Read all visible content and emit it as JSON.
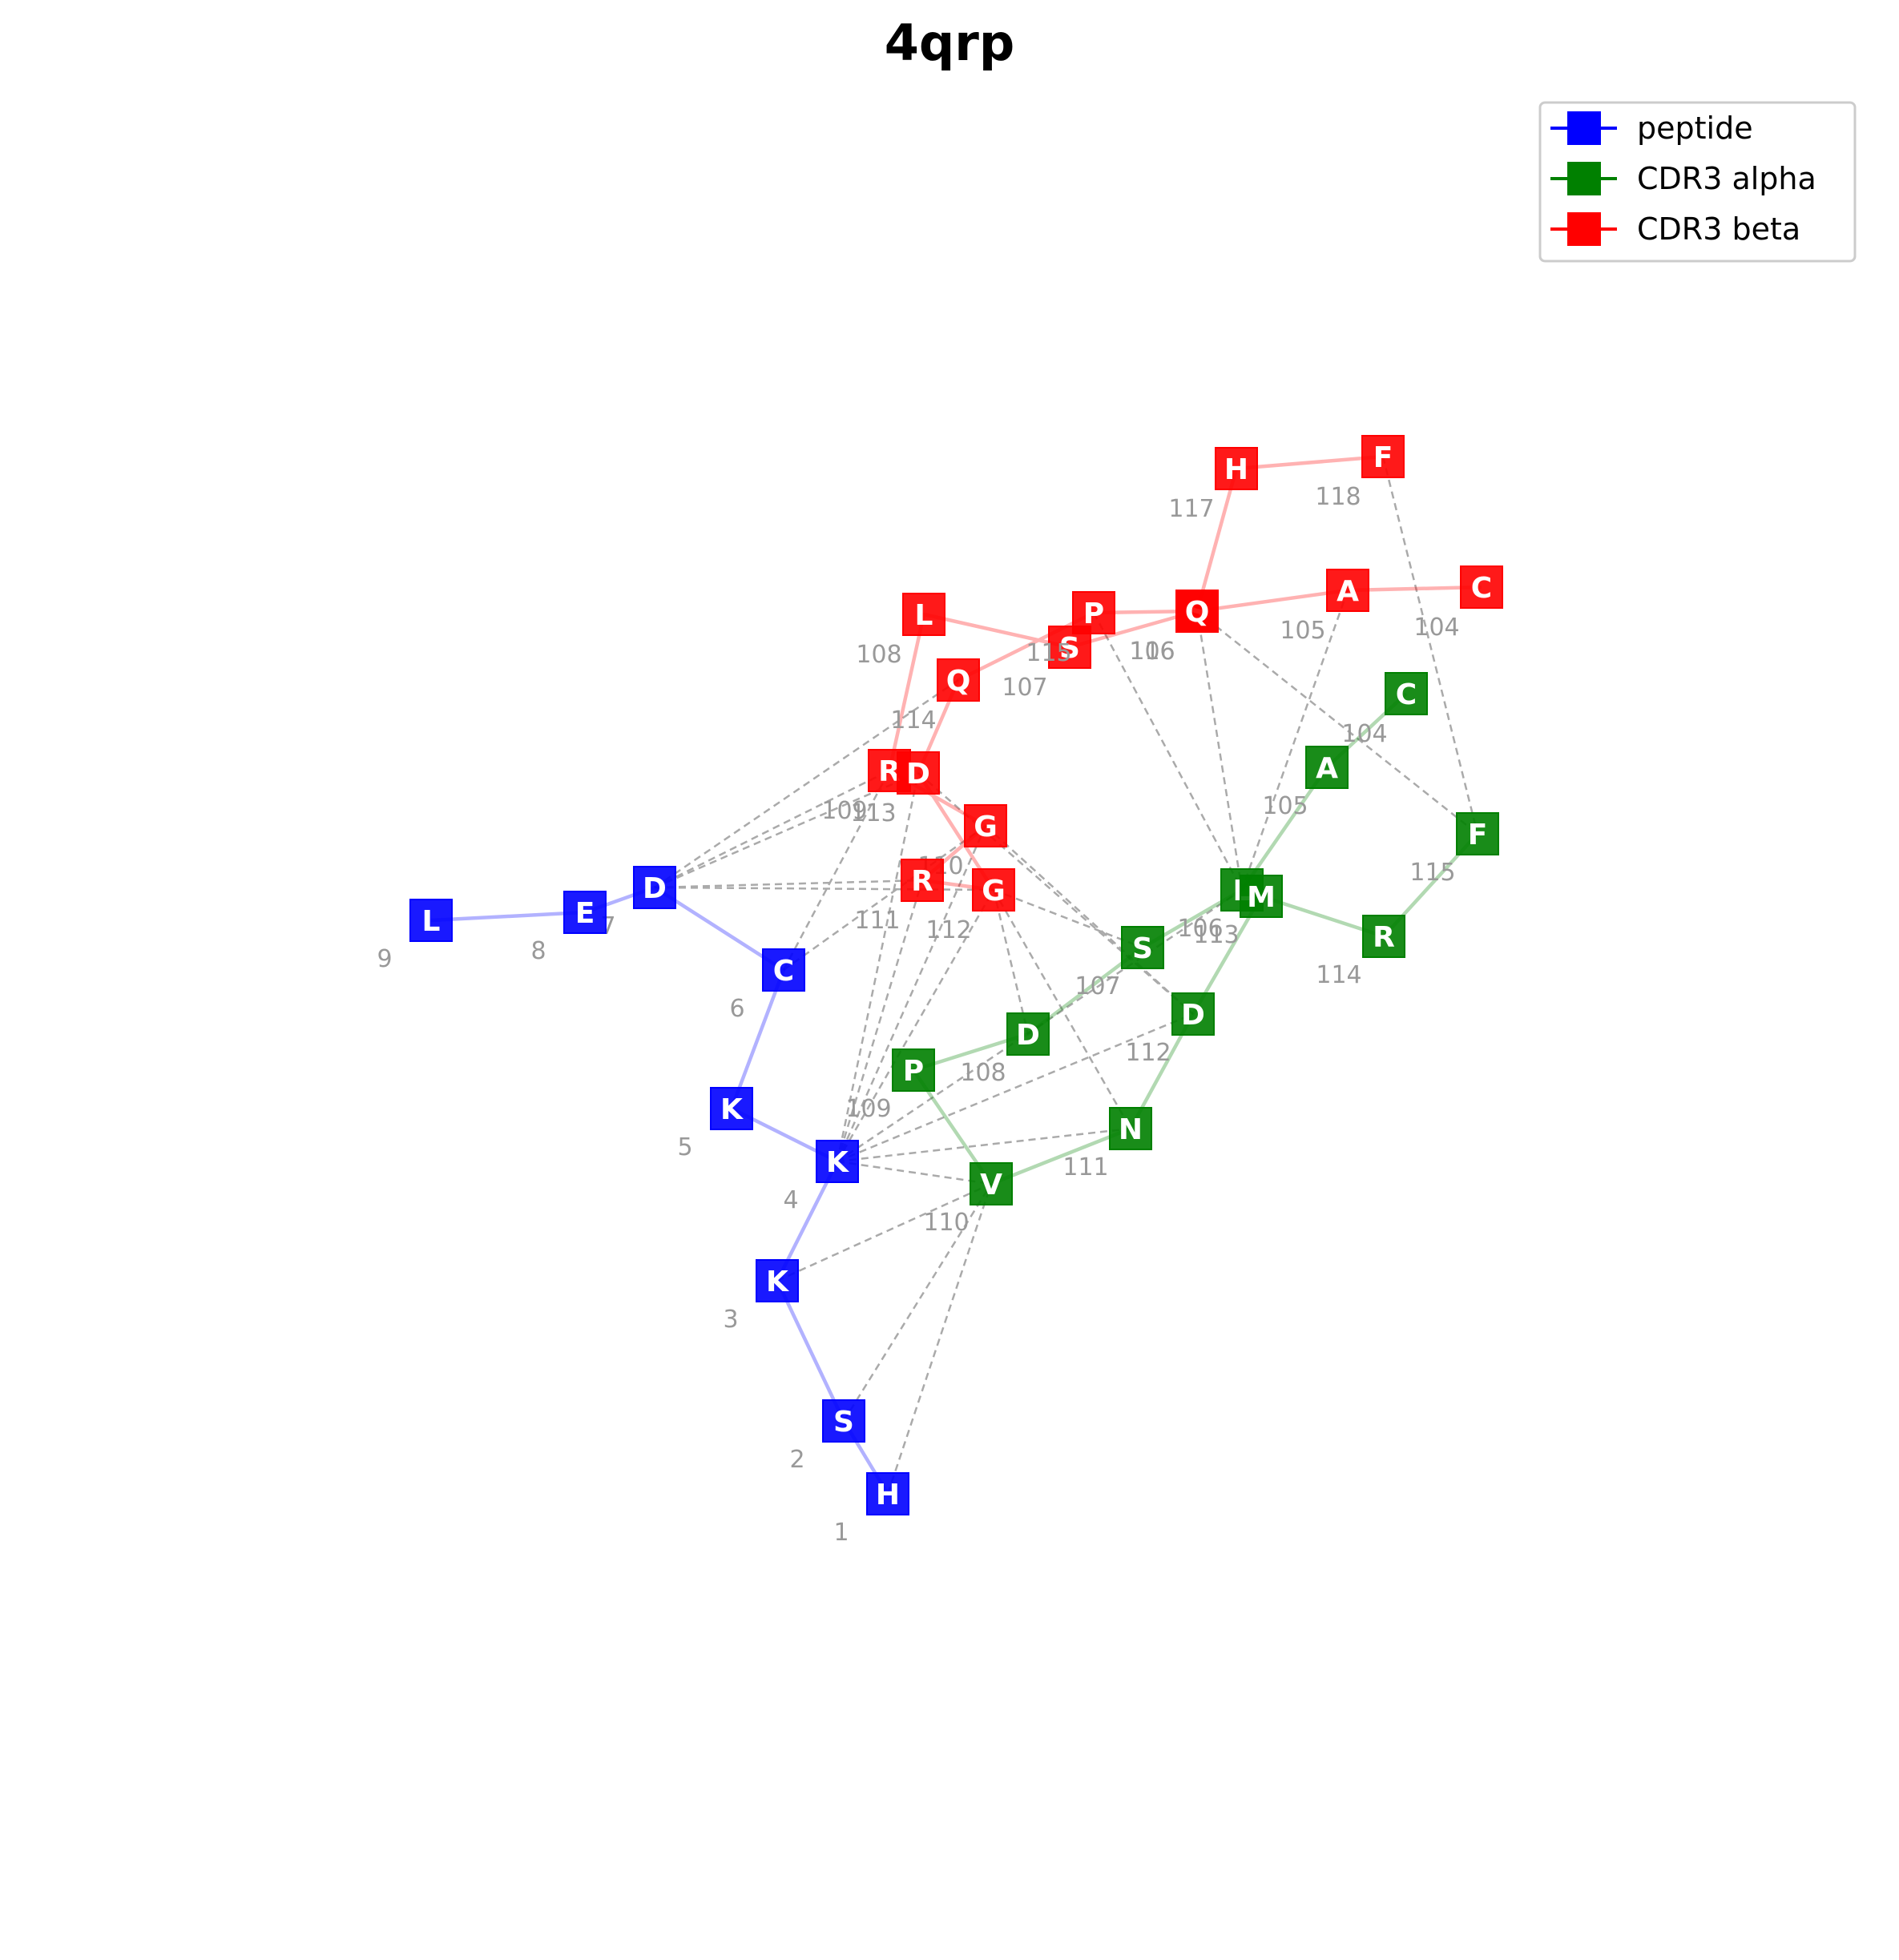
{
  "title": "4qrp",
  "colors": {
    "peptide": "#0000ff",
    "alpha": "#008000",
    "beta": "#ff0000",
    "contact": "#aaaaaa"
  },
  "legend": [
    {
      "label": "peptide",
      "color": "#0000ff"
    },
    {
      "label": "CDR3 alpha",
      "color": "#008000"
    },
    {
      "label": "CDR3 beta",
      "color": "#ff0000"
    }
  ],
  "chains": {
    "peptide": [
      {
        "id": "p1",
        "letter": "H",
        "num": "1"
      },
      {
        "id": "p2",
        "letter": "S",
        "num": "2"
      },
      {
        "id": "p3",
        "letter": "K",
        "num": "3"
      },
      {
        "id": "p4",
        "letter": "K",
        "num": "4"
      },
      {
        "id": "p5",
        "letter": "K",
        "num": "5"
      },
      {
        "id": "p6",
        "letter": "C",
        "num": "6"
      },
      {
        "id": "p7",
        "letter": "D",
        "num": "7"
      },
      {
        "id": "p8",
        "letter": "E",
        "num": "8"
      },
      {
        "id": "p9",
        "letter": "L",
        "num": "9"
      }
    ],
    "alpha": [
      {
        "id": "a104",
        "letter": "C",
        "num": "104"
      },
      {
        "id": "a105",
        "letter": "A",
        "num": "105"
      },
      {
        "id": "a106",
        "letter": "L",
        "num": "106"
      },
      {
        "id": "a107",
        "letter": "S",
        "num": "107"
      },
      {
        "id": "a108",
        "letter": "D",
        "num": "108"
      },
      {
        "id": "a109",
        "letter": "P",
        "num": "109"
      },
      {
        "id": "a110",
        "letter": "V",
        "num": "110"
      },
      {
        "id": "a111",
        "letter": "N",
        "num": "111"
      },
      {
        "id": "a112",
        "letter": "D",
        "num": "112"
      },
      {
        "id": "a113",
        "letter": "M",
        "num": "113"
      },
      {
        "id": "a114",
        "letter": "R",
        "num": "114"
      },
      {
        "id": "a115",
        "letter": "F",
        "num": "115"
      }
    ],
    "beta": [
      {
        "id": "b104",
        "letter": "C",
        "num": "104"
      },
      {
        "id": "b105",
        "letter": "A",
        "num": "105"
      },
      {
        "id": "b106",
        "letter": "S",
        "num": "106"
      },
      {
        "id": "b107",
        "letter": "S",
        "num": "107"
      },
      {
        "id": "b108",
        "letter": "L",
        "num": "108"
      },
      {
        "id": "b109",
        "letter": "R",
        "num": "109"
      },
      {
        "id": "b110",
        "letter": "G",
        "num": "110"
      },
      {
        "id": "b111",
        "letter": "R",
        "num": "111"
      },
      {
        "id": "b112",
        "letter": "G",
        "num": "112"
      },
      {
        "id": "b113",
        "letter": "D",
        "num": "113"
      },
      {
        "id": "b114",
        "letter": "Q",
        "num": "114"
      },
      {
        "id": "b115",
        "letter": "P",
        "num": "115"
      },
      {
        "id": "b116",
        "letter": "Q",
        "num": "116"
      },
      {
        "id": "b117",
        "letter": "H",
        "num": "117"
      },
      {
        "id": "b118",
        "letter": "F",
        "num": "118"
      }
    ]
  },
  "contacts": [
    [
      "p7",
      "b109"
    ],
    [
      "p7",
      "b113"
    ],
    [
      "p7",
      "b114"
    ],
    [
      "p7",
      "b111"
    ],
    [
      "p7",
      "b112"
    ],
    [
      "p6",
      "b109"
    ],
    [
      "p6",
      "b110"
    ],
    [
      "p4",
      "b113"
    ],
    [
      "p4",
      "b111"
    ],
    [
      "p4",
      "b110"
    ],
    [
      "p4",
      "b112"
    ],
    [
      "p4",
      "a110"
    ],
    [
      "p4",
      "a111"
    ],
    [
      "p4",
      "a112"
    ],
    [
      "p4",
      "a106"
    ],
    [
      "p3",
      "a110"
    ],
    [
      "p2",
      "a110"
    ],
    [
      "p1",
      "a110"
    ],
    [
      "b112",
      "a108"
    ],
    [
      "b112",
      "a111"
    ],
    [
      "b112",
      "a107"
    ],
    [
      "b113",
      "a112"
    ],
    [
      "b110",
      "a112"
    ],
    [
      "b115",
      "a106"
    ],
    [
      "b116",
      "a106"
    ],
    [
      "b116",
      "a115"
    ],
    [
      "b105",
      "a106"
    ],
    [
      "b118",
      "a115"
    ]
  ]
}
